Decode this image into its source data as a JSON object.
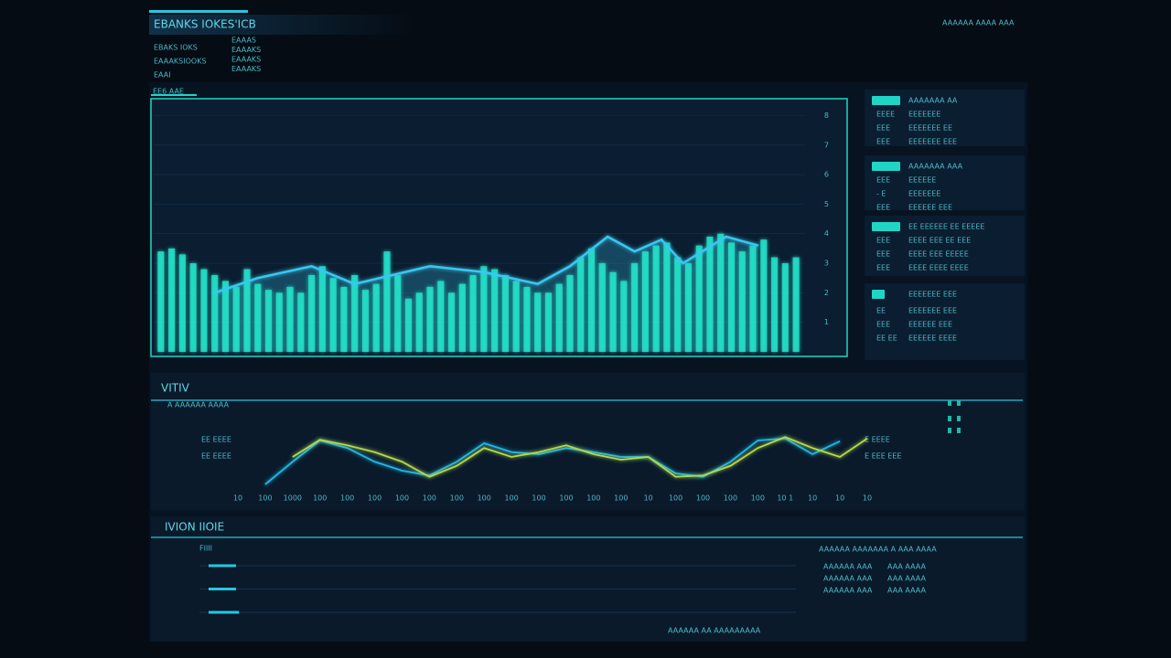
{
  "header": {
    "title": "EBANKS IOKES'ICB",
    "sub_left": [
      "EBAKS IOKS",
      "EAAAKSIOOKS",
      "EAAI"
    ],
    "sub_right": [
      "EAAAS",
      "EAAAKS",
      "EAAAKS",
      "EAAAKS"
    ],
    "top_right": "AAAAAA AAAA AAA"
  },
  "bar_panel": {
    "label": "EE6 AAE",
    "ylim": [
      0,
      8.2
    ],
    "yticks": [
      1,
      2,
      3,
      4,
      5,
      6,
      7,
      8
    ],
    "color": "#22e0c8",
    "values": [
      3.4,
      3.5,
      3.3,
      3.0,
      2.8,
      2.6,
      2.4,
      2.2,
      2.8,
      2.3,
      2.1,
      2.0,
      2.2,
      2.0,
      2.6,
      2.9,
      2.5,
      2.2,
      2.6,
      2.1,
      2.3,
      3.4,
      2.6,
      1.8,
      2.0,
      2.2,
      2.4,
      2.0,
      2.3,
      2.6,
      2.9,
      2.8,
      2.6,
      2.4,
      2.2,
      2.0,
      2.0,
      2.3,
      2.6,
      3.2,
      3.5,
      3.0,
      2.7,
      2.4,
      3.0,
      3.4,
      3.6,
      3.7,
      3.2,
      3.0,
      3.6,
      3.9,
      4.0,
      3.7,
      3.4,
      3.6,
      3.8,
      3.2,
      3.0,
      3.2
    ],
    "area": {
      "color": "#38c8f0",
      "x": [
        5,
        9,
        14,
        18,
        25,
        30,
        35,
        38,
        41.5,
        44,
        46.5,
        48.5,
        52.5,
        55.5
      ],
      "values": [
        2.0,
        2.5,
        2.9,
        2.3,
        2.9,
        2.7,
        2.3,
        2.9,
        3.9,
        3.4,
        3.8,
        3.0,
        3.9,
        3.6
      ]
    }
  },
  "side_cards": [
    {
      "heading": "AAAAAAA AA",
      "rows": [
        [
          "EEEE",
          "EEEEEEE"
        ],
        [
          "EEE",
          "EEEEEEE EE"
        ],
        [
          "EEE",
          "EEEEEEE EEE"
        ]
      ]
    },
    {
      "heading": "AAAAAAA AAA",
      "rows": [
        [
          "EEE",
          "EEEEEE"
        ],
        [
          "- E",
          "EEEEEEE"
        ],
        [
          "EEE",
          "EEEEEE EEE"
        ]
      ]
    },
    {
      "heading": "EE EEEEEE  EE EEEEE",
      "rows": [
        [
          "EEE",
          "EEEE EEE EE EEE"
        ],
        [
          "EEE",
          "EEEE EEE EEEEE"
        ],
        [
          "EEE",
          "EEEE EEEE EEEE"
        ]
      ]
    },
    {
      "heading": "EEEEEEE EEE",
      "rows": [
        [
          "EE",
          "EEEEEEE EEE"
        ],
        [
          "EEE",
          "EEEEEE EEE"
        ],
        [
          "EE EE",
          "EEEEEE EEEE"
        ]
      ]
    }
  ],
  "line_panel": {
    "title": "VITIV",
    "subtitle": "A AAAAAA AAAA",
    "left_labels": [
      "EE EEEE",
      "EE EEEE"
    ],
    "right_labels": [
      "E EEEE",
      "E EEE EEE"
    ],
    "categories": [
      "10",
      "100",
      "1000",
      "100",
      "100",
      "100",
      "100",
      "100",
      "100",
      "100",
      "100",
      "100",
      "100",
      "100",
      "100",
      "10",
      "100",
      "100",
      "100",
      "100",
      "10 1",
      "10",
      "10",
      "10"
    ],
    "ylim": [
      0,
      10
    ],
    "series": [
      {
        "color": "#1fb8e8",
        "values": [
          null,
          2.0,
          5.3,
          8.4,
          7.3,
          5.3,
          4.0,
          3.3,
          5.3,
          8.0,
          6.7,
          6.4,
          7.3,
          6.7,
          6.0,
          6.0,
          3.6,
          3.1,
          5.3,
          8.4,
          8.7,
          6.4,
          8.3,
          null
        ]
      },
      {
        "color": "#b5d84a",
        "values": [
          null,
          null,
          6.0,
          8.5,
          7.7,
          6.7,
          5.3,
          3.1,
          4.7,
          7.3,
          6.0,
          6.7,
          7.7,
          6.4,
          5.6,
          6.0,
          3.1,
          3.3,
          4.7,
          7.3,
          8.9,
          7.3,
          6.0,
          8.7
        ]
      }
    ]
  },
  "bottom_panel": {
    "title": "IVION IIOIE",
    "label": "FIIII",
    "xlim": [
      0,
      100
    ],
    "progress": [
      4.6,
      4.6,
      5.1
    ],
    "color": "#22c8e0",
    "right_heading": "AAAAAA AAAAAAA A AAA AAAA",
    "right_rows": [
      [
        "AAAAAA AAA",
        "AAA AAAA"
      ],
      [
        "AAAAAA AAA",
        "AAA AAAA"
      ],
      [
        "AAAAAA AAA",
        "AAA AAAA"
      ]
    ],
    "footer": "AAAAAA  AA  AAAAAAAAA"
  }
}
